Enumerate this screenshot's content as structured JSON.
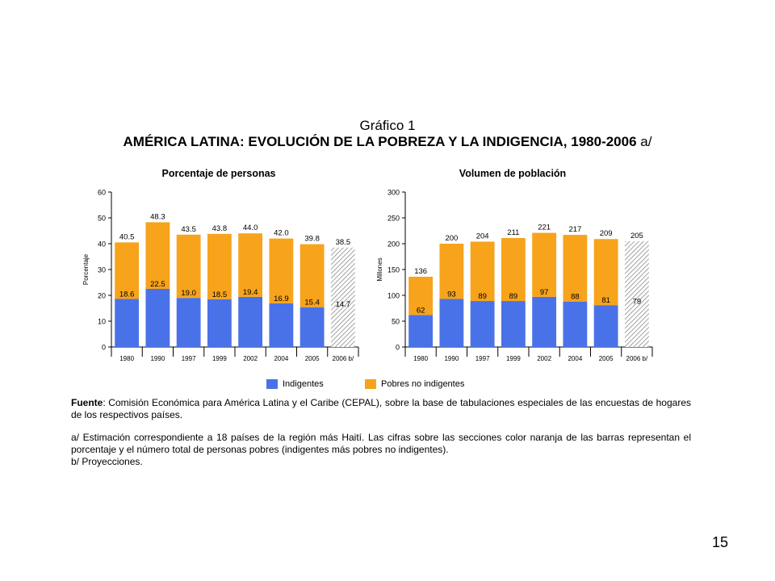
{
  "figure": {
    "label": "Gráfico 1",
    "title": "AMÉRICA LATINA: EVOLUCIÓN DE LA POBREZA Y LA INDIGENCIA, 1980-2006",
    "title_suffix": "a/"
  },
  "colors": {
    "indigentes": "#4A72E8",
    "pobres_no_indigentes": "#F7A31C",
    "projection_hatch": "#8a8a8a"
  },
  "chart_data": [
    {
      "type": "bar",
      "stacked": true,
      "title": "Porcentaje de personas",
      "ylabel": "Porcentaje",
      "xlabel": "",
      "ylim": [
        0,
        60
      ],
      "yticks": [
        0,
        10,
        20,
        30,
        40,
        50,
        60
      ],
      "categories": [
        "1980",
        "1990",
        "1997",
        "1999",
        "2002",
        "2004",
        "2005",
        "2006 b/"
      ],
      "projected": [
        false,
        false,
        false,
        false,
        false,
        false,
        false,
        true
      ],
      "series": [
        {
          "name": "Indigentes",
          "values": [
            18.6,
            22.5,
            19.0,
            18.5,
            19.4,
            16.9,
            15.4,
            14.7
          ]
        },
        {
          "name": "Pobres no indigentes",
          "values": [
            21.9,
            25.8,
            24.5,
            25.3,
            24.6,
            25.1,
            24.4,
            23.8
          ]
        }
      ],
      "totals": [
        40.5,
        48.3,
        43.5,
        43.8,
        44.0,
        42.0,
        39.8,
        38.5
      ],
      "labels_indigentes": [
        "18.6",
        "22.5",
        "19.0",
        "18.5",
        "19.4",
        "16.9",
        "15.4",
        "14.7"
      ],
      "labels_totals": [
        "40.5",
        "48.3",
        "43.5",
        "43.8",
        "44.0",
        "42.0",
        "39.8",
        "38.5"
      ],
      "grid": false
    },
    {
      "type": "bar",
      "stacked": true,
      "title": "Volumen de población",
      "ylabel": "Millones",
      "xlabel": "",
      "ylim": [
        0,
        300
      ],
      "yticks": [
        0,
        50,
        100,
        150,
        200,
        250,
        300
      ],
      "categories": [
        "1980",
        "1990",
        "1997",
        "1999",
        "2002",
        "2004",
        "2005",
        "2006 b/"
      ],
      "projected": [
        false,
        false,
        false,
        false,
        false,
        false,
        false,
        true
      ],
      "series": [
        {
          "name": "Indigentes",
          "values": [
            62,
            93,
            89,
            89,
            97,
            88,
            81,
            79
          ]
        },
        {
          "name": "Pobres no indigentes",
          "values": [
            74,
            107,
            115,
            122,
            124,
            129,
            128,
            126
          ]
        }
      ],
      "totals": [
        136,
        200,
        204,
        211,
        221,
        217,
        209,
        205
      ],
      "labels_indigentes": [
        "62",
        "93",
        "89",
        "89",
        "97",
        "88",
        "81",
        "79"
      ],
      "labels_totals": [
        "136",
        "200",
        "204",
        "211",
        "221",
        "217",
        "209",
        "205"
      ],
      "grid": false
    }
  ],
  "legend": {
    "indigentes": "Indigentes",
    "pobres_no_indigentes": "Pobres no indigentes"
  },
  "notes": {
    "fuente_label": "Fuente",
    "fuente_text": ": Comisión Económica para América Latina y el Caribe (CEPAL), sobre la base de tabulaciones especiales de las encuestas de hogares de los respectivos países.",
    "note_a": "a/ Estimación correspondiente a 18 países de la región más Haití. Las cifras sobre las secciones color naranja de las barras representan el porcentaje y el número total de personas pobres (indigentes más pobres no indigentes).",
    "note_b": "b/ Proyecciones."
  },
  "page_number": "15"
}
